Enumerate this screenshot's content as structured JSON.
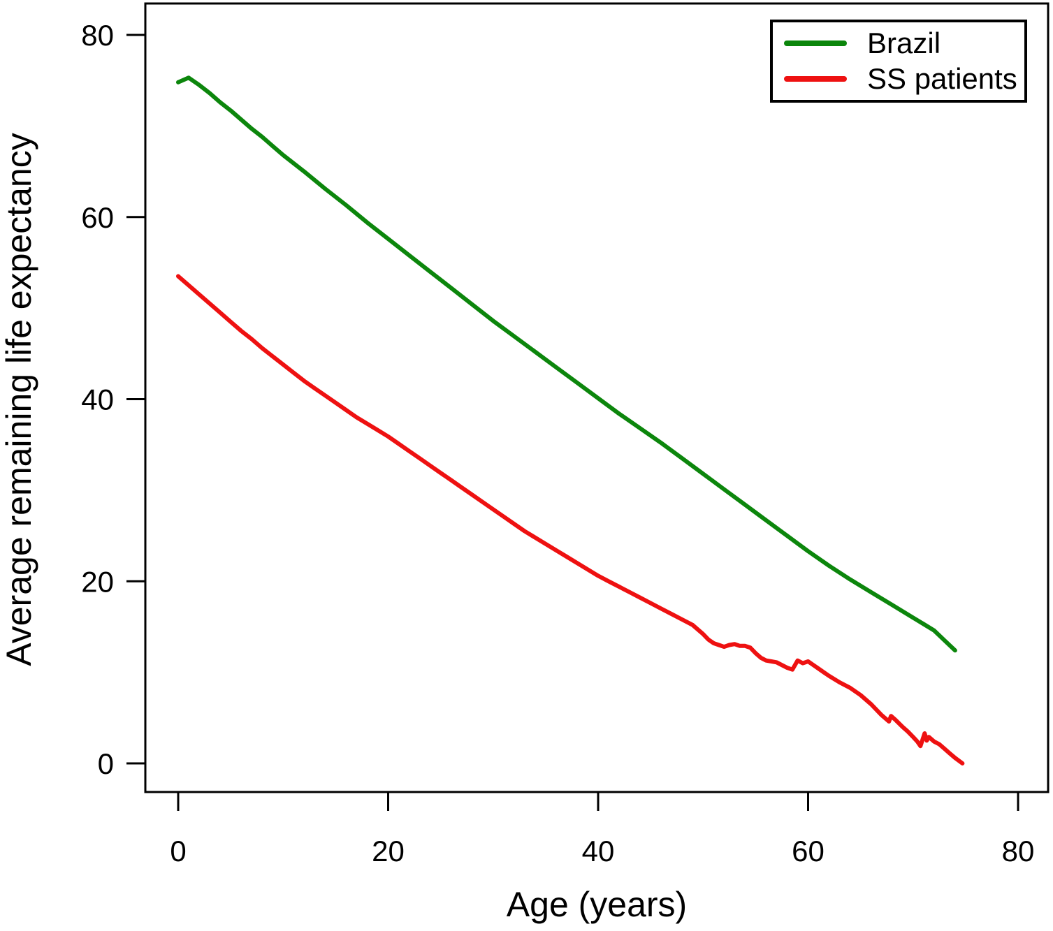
{
  "chart_data": {
    "type": "line",
    "title": "",
    "xlabel": "Age (years)",
    "ylabel": "Average remaining life expectancy",
    "xlim": [
      0,
      80
    ],
    "ylim": [
      0,
      80
    ],
    "x_ticks": [
      0,
      20,
      40,
      60,
      80
    ],
    "y_ticks": [
      0,
      20,
      40,
      60,
      80
    ],
    "grid": false,
    "legend_position": "top-right",
    "axis_color": "#000000",
    "background_color": "#ffffff",
    "series": [
      {
        "name": "Brazil",
        "color": "#0c860c",
        "points": [
          [
            0,
            74.8
          ],
          [
            1,
            75.3
          ],
          [
            2,
            74.5
          ],
          [
            3,
            73.6
          ],
          [
            4,
            72.6
          ],
          [
            5,
            71.7
          ],
          [
            6,
            70.7
          ],
          [
            7,
            69.7
          ],
          [
            8,
            68.8
          ],
          [
            9,
            67.8
          ],
          [
            10,
            66.8
          ],
          [
            12,
            65.0
          ],
          [
            14,
            63.1
          ],
          [
            16,
            61.3
          ],
          [
            18,
            59.4
          ],
          [
            20,
            57.6
          ],
          [
            22,
            55.8
          ],
          [
            24,
            54.0
          ],
          [
            26,
            52.2
          ],
          [
            28,
            50.4
          ],
          [
            30,
            48.6
          ],
          [
            32,
            46.9
          ],
          [
            34,
            45.2
          ],
          [
            36,
            43.5
          ],
          [
            38,
            41.8
          ],
          [
            40,
            40.1
          ],
          [
            42,
            38.4
          ],
          [
            44,
            36.8
          ],
          [
            46,
            35.2
          ],
          [
            48,
            33.5
          ],
          [
            50,
            31.8
          ],
          [
            52,
            30.1
          ],
          [
            54,
            28.4
          ],
          [
            56,
            26.7
          ],
          [
            58,
            25.0
          ],
          [
            60,
            23.3
          ],
          [
            62,
            21.7
          ],
          [
            64,
            20.2
          ],
          [
            66,
            18.8
          ],
          [
            68,
            17.4
          ],
          [
            70,
            16.0
          ],
          [
            71,
            15.3
          ],
          [
            72,
            14.6
          ],
          [
            73,
            13.5
          ],
          [
            74,
            12.4
          ]
        ]
      },
      {
        "name": "SS patients",
        "color": "#ee1111",
        "points": [
          [
            0,
            53.5
          ],
          [
            1,
            52.5
          ],
          [
            2,
            51.5
          ],
          [
            3,
            50.5
          ],
          [
            4,
            49.5
          ],
          [
            5,
            48.5
          ],
          [
            6,
            47.5
          ],
          [
            7,
            46.6
          ],
          [
            8,
            45.6
          ],
          [
            9,
            44.7
          ],
          [
            10,
            43.8
          ],
          [
            11,
            42.9
          ],
          [
            12,
            42.0
          ],
          [
            13,
            41.2
          ],
          [
            14,
            40.4
          ],
          [
            15,
            39.6
          ],
          [
            16,
            38.8
          ],
          [
            17,
            38.0
          ],
          [
            18,
            37.3
          ],
          [
            19,
            36.6
          ],
          [
            20,
            35.9
          ],
          [
            21,
            35.1
          ],
          [
            22,
            34.3
          ],
          [
            23,
            33.5
          ],
          [
            24,
            32.7
          ],
          [
            25,
            31.9
          ],
          [
            26,
            31.1
          ],
          [
            27,
            30.3
          ],
          [
            28,
            29.5
          ],
          [
            29,
            28.7
          ],
          [
            30,
            27.9
          ],
          [
            31,
            27.1
          ],
          [
            32,
            26.3
          ],
          [
            33,
            25.5
          ],
          [
            34,
            24.8
          ],
          [
            35,
            24.1
          ],
          [
            36,
            23.4
          ],
          [
            37,
            22.7
          ],
          [
            38,
            22.0
          ],
          [
            39,
            21.3
          ],
          [
            40,
            20.6
          ],
          [
            41,
            20.0
          ],
          [
            42,
            19.4
          ],
          [
            43,
            18.8
          ],
          [
            44,
            18.2
          ],
          [
            45,
            17.6
          ],
          [
            46,
            17.0
          ],
          [
            47,
            16.4
          ],
          [
            48,
            15.8
          ],
          [
            49,
            15.2
          ],
          [
            50,
            14.2
          ],
          [
            50.5,
            13.6
          ],
          [
            51,
            13.2
          ],
          [
            51.5,
            13.0
          ],
          [
            52,
            12.8
          ],
          [
            52.5,
            13.0
          ],
          [
            53,
            13.1
          ],
          [
            53.5,
            12.9
          ],
          [
            54,
            12.9
          ],
          [
            54.5,
            12.7
          ],
          [
            55,
            12.1
          ],
          [
            55.5,
            11.6
          ],
          [
            56,
            11.3
          ],
          [
            56.5,
            11.2
          ],
          [
            57,
            11.1
          ],
          [
            57.5,
            10.8
          ],
          [
            58,
            10.5
          ],
          [
            58.5,
            10.3
          ],
          [
            59,
            11.3
          ],
          [
            59.5,
            11.0
          ],
          [
            60,
            11.2
          ],
          [
            60.5,
            10.8
          ],
          [
            61,
            10.4
          ],
          [
            61.5,
            10.0
          ],
          [
            62,
            9.6
          ],
          [
            63,
            8.9
          ],
          [
            64,
            8.3
          ],
          [
            65,
            7.5
          ],
          [
            66,
            6.5
          ],
          [
            67,
            5.3
          ],
          [
            67.7,
            4.6
          ],
          [
            67.9,
            5.2
          ],
          [
            68.3,
            4.8
          ],
          [
            69,
            4.0
          ],
          [
            69.5,
            3.5
          ],
          [
            70,
            2.9
          ],
          [
            70.4,
            2.4
          ],
          [
            70.7,
            1.9
          ],
          [
            71.1,
            3.3
          ],
          [
            71.3,
            2.5
          ],
          [
            71.5,
            2.9
          ],
          [
            72,
            2.4
          ],
          [
            72.5,
            2.1
          ],
          [
            73,
            1.6
          ],
          [
            73.5,
            1.1
          ],
          [
            74,
            0.6
          ],
          [
            74.7,
            0
          ]
        ]
      }
    ]
  },
  "legend": {
    "items": [
      {
        "label": "Brazil",
        "color": "#0c860c"
      },
      {
        "label": "SS patients",
        "color": "#ee1111"
      }
    ]
  }
}
